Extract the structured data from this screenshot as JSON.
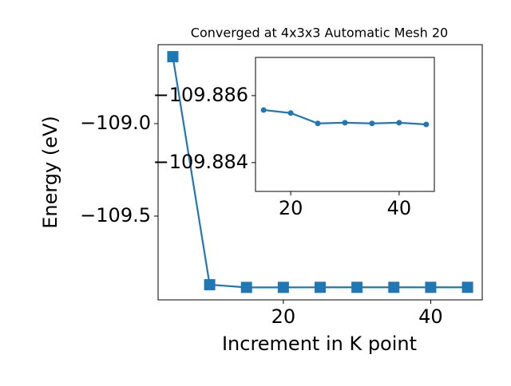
{
  "chart_data": [
    {
      "type": "line",
      "title": "Converged at 4x3x3 Automatic Mesh 20",
      "x_label": "Increment in K point",
      "y_label": "Energy (eV)",
      "x": [
        5,
        10,
        15,
        20,
        25,
        30,
        35,
        40,
        45
      ],
      "series": [
        {
          "color": "#1f77b4",
          "marker": "square",
          "values": [
            -108.638,
            -109.871,
            -109.88557,
            -109.88548,
            -109.88517,
            -109.88519,
            -109.88517,
            -109.88519,
            -109.88514
          ]
        }
      ],
      "xlim": [
        3,
        47
      ],
      "xticks": [
        20,
        40
      ],
      "ylim": [
        -109.953,
        -108.573
      ],
      "yticks": [
        {
          "value": -109.5,
          "label": "−109.5"
        },
        {
          "value": -109.0,
          "label": "−109.0"
        }
      ]
    },
    {
      "type": "line",
      "x": [
        15,
        20,
        25,
        30,
        35,
        40,
        45
      ],
      "series": [
        {
          "color": "#1f77b4",
          "marker": "circle",
          "values": [
            -109.88557,
            -109.88548,
            -109.88517,
            -109.88519,
            -109.88517,
            -109.88519,
            -109.88514
          ]
        }
      ],
      "xlim": [
        13.5,
        46.5
      ],
      "xticks": [
        20,
        40
      ],
      "ylim": [
        -109.88314,
        -109.88714
      ],
      "yticks": [
        {
          "value": -109.884,
          "label": "−109.884"
        },
        {
          "value": -109.886,
          "label": "−109.886"
        }
      ]
    }
  ]
}
